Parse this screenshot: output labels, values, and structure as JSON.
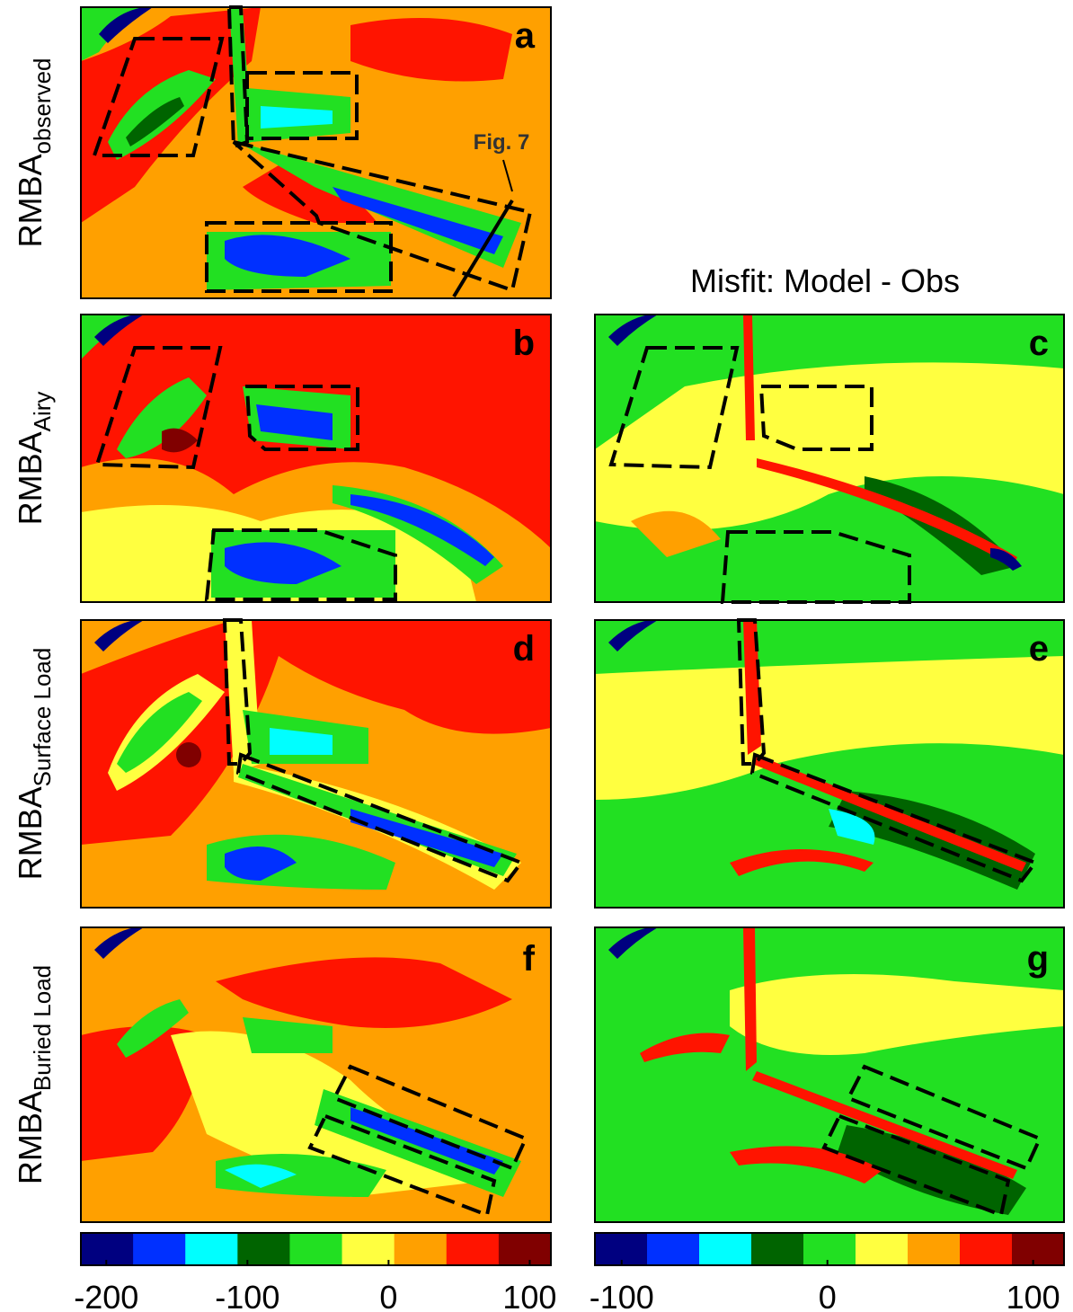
{
  "figure": {
    "panels": [
      {
        "letter": "a",
        "ylabel": "RMBA",
        "ylabel_sub": "observed"
      },
      {
        "letter": "b",
        "ylabel": "RMBA",
        "ylabel_sub": "Airy"
      },
      {
        "letter": "c"
      },
      {
        "letter": "d",
        "ylabel": "RMBA",
        "ylabel_sub": "Surface Load"
      },
      {
        "letter": "e"
      },
      {
        "letter": "f",
        "ylabel": "RMBA",
        "ylabel_sub": "Buried Load"
      },
      {
        "letter": "g"
      }
    ],
    "misfit_title": "Misfit: Model - Obs",
    "annotation": "Fig. 7"
  },
  "chart_data": [
    {
      "type": "colorbar",
      "colors": [
        "#000080",
        "#0030ff",
        "#00ffff",
        "#006400",
        "#22e022",
        "#ffff40",
        "#ffa000",
        "#ff1400",
        "#800000"
      ],
      "xlim": [
        -218,
        115
      ],
      "xticks": [
        -200,
        -100,
        0,
        100
      ]
    },
    {
      "type": "colorbar",
      "colors": [
        "#000080",
        "#0030ff",
        "#00ffff",
        "#006400",
        "#22e022",
        "#ffff40",
        "#ffa000",
        "#ff1400",
        "#800000"
      ],
      "xlim": [
        -113,
        115
      ],
      "xticks": [
        -100,
        0,
        100
      ]
    }
  ]
}
